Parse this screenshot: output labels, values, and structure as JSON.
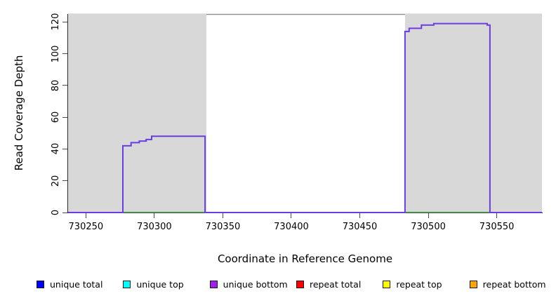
{
  "chart_data": {
    "type": "step-line",
    "title": "",
    "xlabel": "Coordinate in Reference Genome",
    "ylabel": "Read Coverage Depth",
    "xlim": [
      730237,
      730583
    ],
    "ylim": [
      0,
      125
    ],
    "grid": false,
    "x_ticks": [
      730250,
      730300,
      730350,
      730400,
      730450,
      730500,
      730550
    ],
    "y_ticks": [
      0,
      20,
      40,
      60,
      80,
      100,
      120
    ],
    "plot_top_border_color": "#919191",
    "highlight_regions": [
      {
        "x1": 730237,
        "x2": 730338,
        "color": "#d8d8d8"
      },
      {
        "x1": 730483,
        "x2": 730583,
        "color": "#d8d8d8"
      }
    ],
    "series": [
      {
        "name": "unique bottom coverage (overlaps unique total)",
        "color": "#6b3ce4",
        "line_width": 2,
        "step_points": [
          [
            730237,
            0
          ],
          [
            730277,
            42
          ],
          [
            730283,
            44
          ],
          [
            730289,
            45
          ],
          [
            730294,
            46
          ],
          [
            730298,
            48
          ],
          [
            730337,
            0
          ],
          [
            730483,
            114
          ],
          [
            730486,
            116
          ],
          [
            730495,
            118
          ],
          [
            730504,
            119
          ],
          [
            730543,
            118
          ],
          [
            730545,
            0
          ]
        ],
        "x_end": 730583
      }
    ],
    "zero_baseline_segments": [
      {
        "x1": 730277,
        "x2": 730337,
        "color": "#5fba5f"
      },
      {
        "x1": 730483,
        "x2": 730545,
        "color": "#5fba5f"
      }
    ],
    "legend_position": "bottom"
  },
  "legend": {
    "items": [
      {
        "label": "unique total",
        "color": "#0000ff"
      },
      {
        "label": "unique top",
        "color": "#00ffff"
      },
      {
        "label": "unique bottom",
        "color": "#a020f0"
      },
      {
        "label": "repeat total",
        "color": "#ff0000"
      },
      {
        "label": "repeat top",
        "color": "#ffff00"
      },
      {
        "label": "repeat bottom",
        "color": "#ffa500"
      }
    ]
  }
}
